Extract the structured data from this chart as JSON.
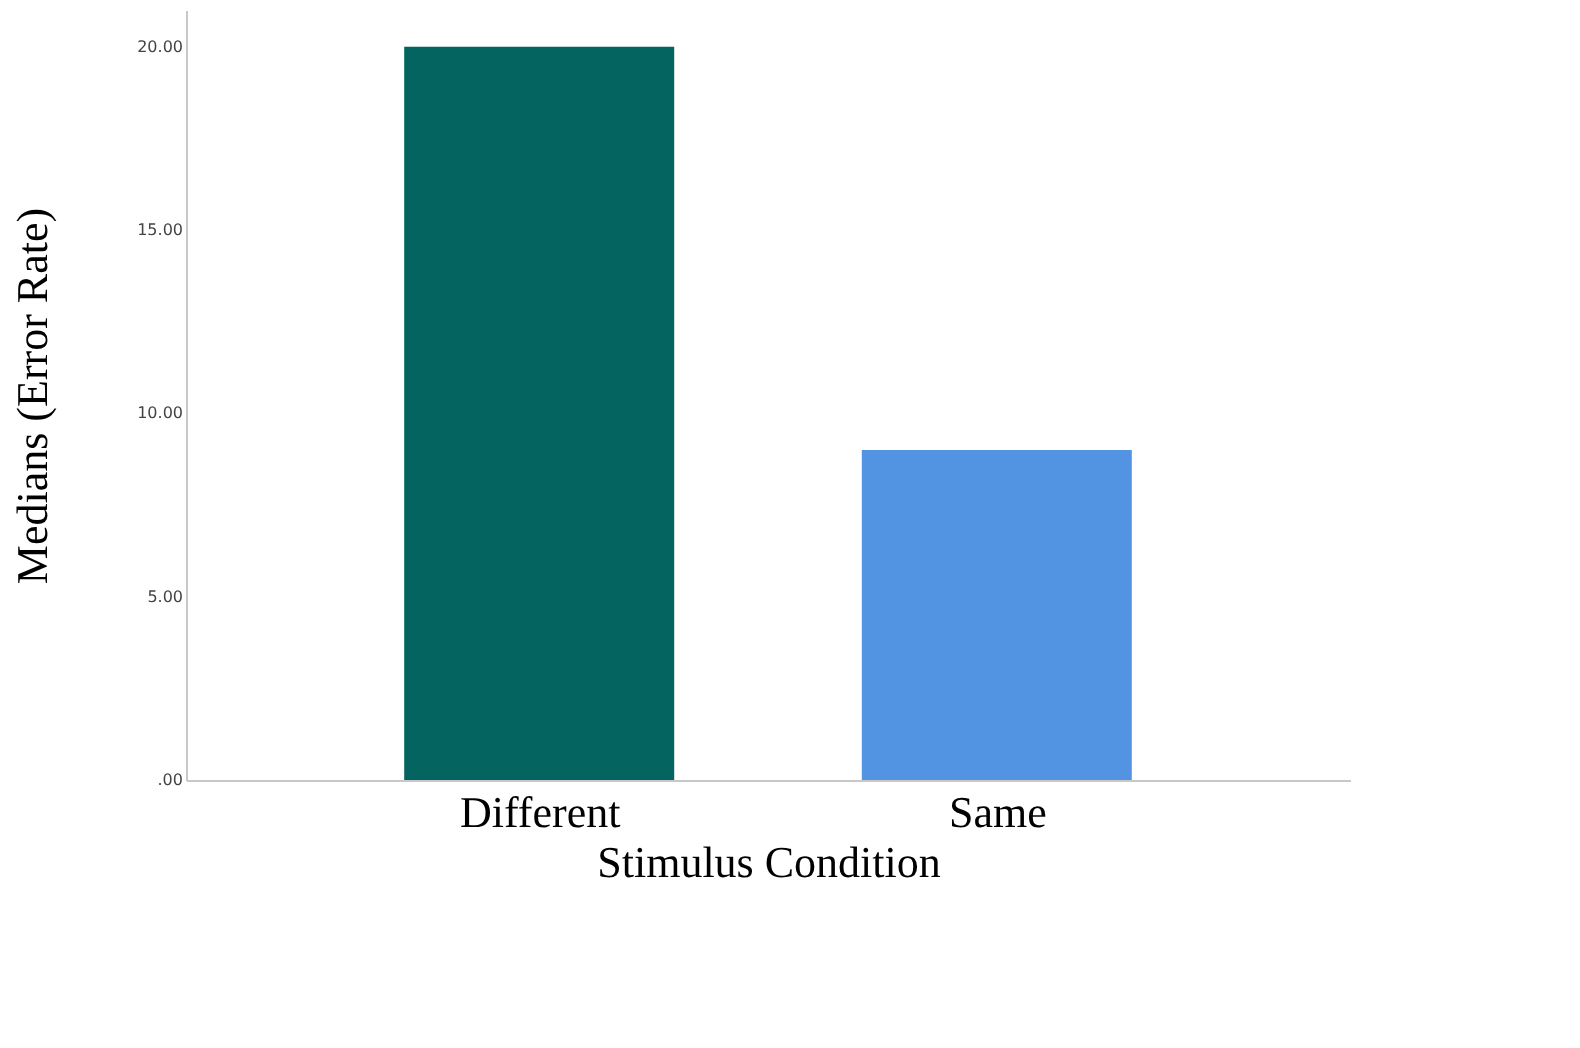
{
  "chart_data": {
    "type": "bar",
    "categories": [
      "Different",
      "Same"
    ],
    "values": [
      20,
      9
    ],
    "colors": [
      "#036460",
      "#5294e2"
    ],
    "xlabel": "Stimulus Condition",
    "ylabel": "Medians (Error Rate)",
    "ylim": [
      0,
      21
    ],
    "yticks": [
      {
        "value": 0,
        "label": ".00"
      },
      {
        "value": 5,
        "label": "5.00"
      },
      {
        "value": 10,
        "label": "10.00"
      },
      {
        "value": 15,
        "label": "15.00"
      },
      {
        "value": 20,
        "label": "20.00"
      }
    ],
    "grid": false
  }
}
